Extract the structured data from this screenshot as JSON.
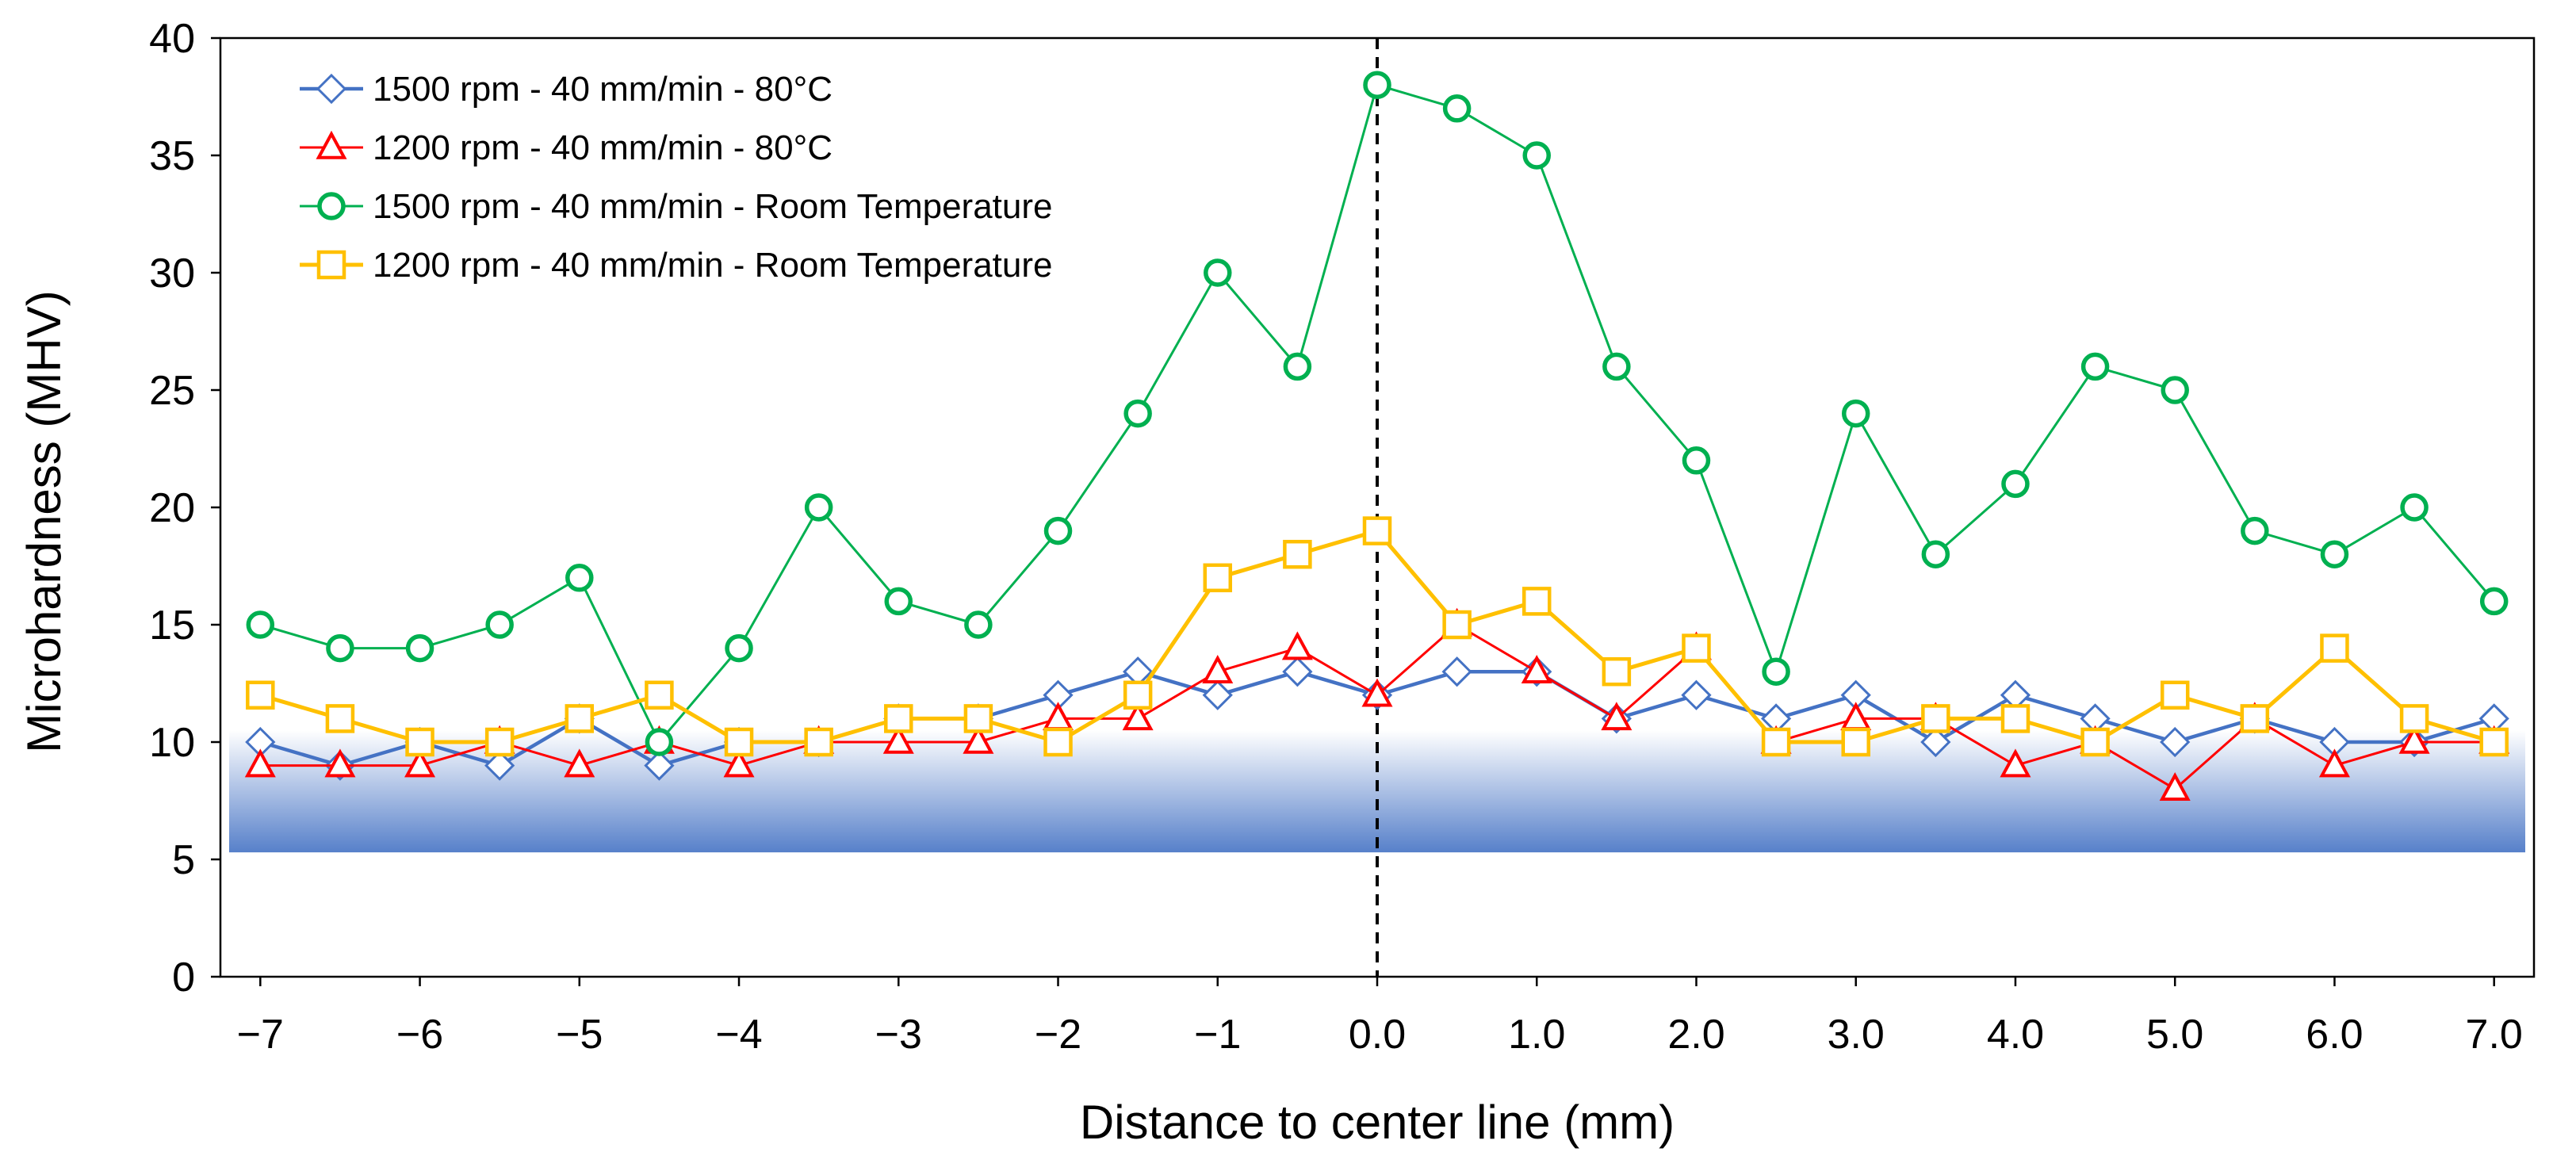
{
  "chart_data": {
    "type": "line",
    "title": "",
    "xlabel": "Distance to center line (mm)",
    "ylabel": "Microhardness (MHV)",
    "ylim": [
      0,
      40
    ],
    "xlim": [
      -7.25,
      7.25
    ],
    "yticks": [
      0,
      5,
      10,
      15,
      20,
      25,
      30,
      35,
      40
    ],
    "ytick_labels": [
      "0",
      "5",
      "10",
      "15",
      "20",
      "25",
      "30",
      "35",
      "40"
    ],
    "xticks": [
      -7,
      -6,
      -5,
      -4,
      -3,
      -2,
      -1,
      0,
      1,
      2,
      3,
      4,
      5,
      6,
      7
    ],
    "xtick_labels": [
      "−7",
      "−6",
      "−5",
      "−4",
      "−3",
      "−2",
      "−1",
      "0.0",
      "1.0",
      "2.0",
      "3.0",
      "4.0",
      "5.0",
      "6.0",
      "7.0"
    ],
    "grid": false,
    "legend_position": "top-left",
    "center_line_x": 0,
    "shaded_band": {
      "from": 5.3,
      "to": 10.5,
      "color": "#4472c4"
    },
    "x": [
      -7,
      -6.5,
      -6,
      -5.5,
      -5,
      -4.5,
      -4,
      -3.5,
      -3,
      -2.5,
      -2,
      -1.5,
      -1,
      -0.5,
      0,
      0.5,
      1,
      1.5,
      2,
      2.5,
      3,
      3.5,
      4,
      4.5,
      5,
      5.5,
      6,
      6.5,
      7
    ],
    "series": [
      {
        "name": "1500 rpm - 40 mm/min - 80°C",
        "marker": "diamond",
        "color": "#4472c4",
        "values": [
          10,
          9,
          10,
          9,
          11,
          9,
          10,
          10,
          11,
          11,
          12,
          13,
          12,
          13,
          12,
          13,
          13,
          11,
          12,
          11,
          12,
          10,
          12,
          11,
          10,
          11,
          10,
          10,
          11
        ]
      },
      {
        "name": "1200 rpm - 40 mm/min - 80°C",
        "marker": "triangle",
        "color": "#ff0000",
        "values": [
          9,
          9,
          9,
          10,
          9,
          10,
          9,
          10,
          10,
          10,
          11,
          11,
          13,
          14,
          12,
          15,
          13,
          11,
          14,
          10,
          11,
          11,
          9,
          10,
          8,
          11,
          9,
          10,
          10
        ]
      },
      {
        "name": "1500 rpm - 40 mm/min - Room Temperature",
        "marker": "circle",
        "color": "#00b050",
        "values": [
          15,
          14,
          14,
          15,
          17,
          10,
          14,
          20,
          16,
          15,
          19,
          24,
          30,
          26,
          38,
          37,
          35,
          26,
          22,
          13,
          24,
          18,
          21,
          26,
          25,
          19,
          18,
          20,
          16
        ]
      },
      {
        "name": "1200 rpm - 40 mm/min -  Room Temperature",
        "marker": "square",
        "color": "#ffc000",
        "values": [
          12,
          11,
          10,
          10,
          11,
          12,
          10,
          10,
          11,
          11,
          10,
          12,
          17,
          18,
          19,
          15,
          16,
          13,
          14,
          10,
          10,
          11,
          11,
          10,
          12,
          11,
          14,
          11,
          10
        ]
      }
    ]
  }
}
